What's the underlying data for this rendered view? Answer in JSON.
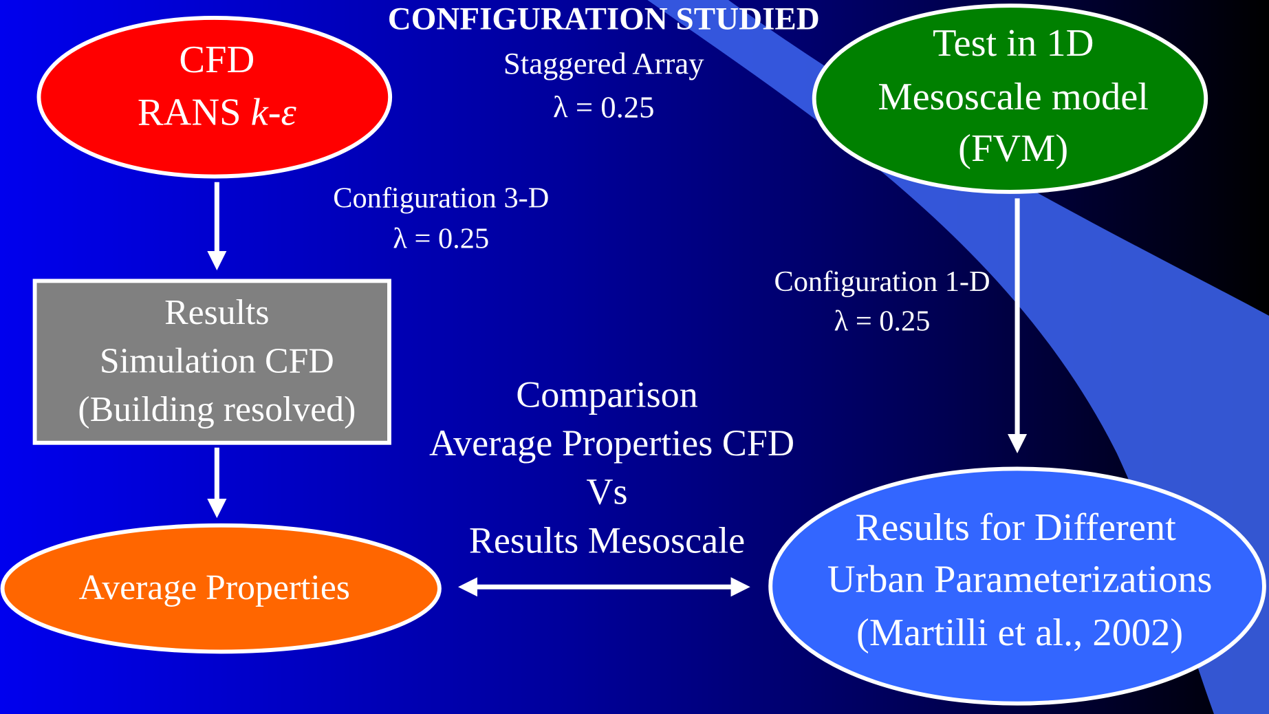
{
  "header": {
    "title": "CONFIGURATION STUDIED",
    "lines": [
      "Staggered Array",
      "λ = 0.25"
    ]
  },
  "nodes": [
    {
      "lines": [
        "CFD",
        "RANS "
      ],
      "italic": "k-ε"
    },
    {
      "lines": [
        "Results",
        "Simulation CFD",
        "(Building resolved)"
      ]
    },
    {
      "lines": [
        "Average Properties"
      ]
    },
    {
      "lines": [
        "Test in 1D",
        "Mesoscale model",
        "(FVM)"
      ]
    },
    {
      "lines": [
        "Results for Different",
        "Urban Parameterizations",
        "(Martilli et al., 2002)"
      ]
    }
  ],
  "edge_labels": [
    {
      "lines": [
        "Configuration 3-D",
        "λ = 0.25"
      ]
    },
    {
      "lines": [
        "Configuration 1-D",
        "λ = 0.25"
      ]
    }
  ],
  "comparison": {
    "lines": [
      "Comparison",
      "Average Properties CFD",
      "Vs",
      "Results Mesoscale"
    ]
  }
}
